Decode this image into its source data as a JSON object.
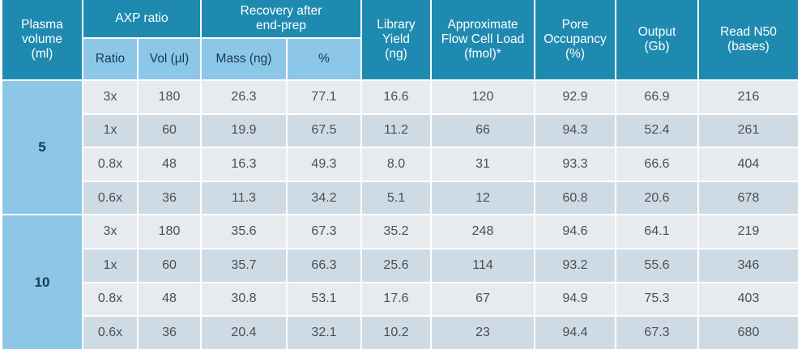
{
  "headers": {
    "plasma_volume": "Plasma\nvolume\n(ml)",
    "axp_ratio": "AXP ratio",
    "recovery": "Recovery after\nend-prep",
    "library_yield": "Library\nYield\n(ng)",
    "flow_cell_load": "Approximate\nFlow Cell Load\n(fmol)*",
    "pore_occupancy": "Pore\nOccupancy\n(%)",
    "output": "Output\n(Gb)",
    "read_n50": "Read N50\n(bases)",
    "ratio": "Ratio",
    "vol": "Vol (µl)",
    "mass": "Mass (ng)",
    "percent": "%"
  },
  "groups": [
    {
      "volume": "5",
      "rows": [
        [
          "3x",
          "180",
          "26.3",
          "77.1",
          "16.6",
          "120",
          "92.9",
          "66.9",
          "216"
        ],
        [
          "1x",
          "60",
          "19.9",
          "67.5",
          "11.2",
          "66",
          "94.3",
          "52.4",
          "261"
        ],
        [
          "0.8x",
          "48",
          "16.3",
          "49.3",
          "8.0",
          "31",
          "93.3",
          "66.6",
          "404"
        ],
        [
          "0.6x",
          "36",
          "11.3",
          "34.2",
          "5.1",
          "12",
          "60.8",
          "20.6",
          "678"
        ]
      ]
    },
    {
      "volume": "10",
      "rows": [
        [
          "3x",
          "180",
          "35.6",
          "67.3",
          "35.2",
          "248",
          "94.6",
          "64.1",
          "219"
        ],
        [
          "1x",
          "60",
          "35.7",
          "66.3",
          "25.6",
          "114",
          "93.2",
          "55.6",
          "346"
        ],
        [
          "0.8x",
          "48",
          "30.8",
          "53.1",
          "17.6",
          "67",
          "94.9",
          "75.3",
          "403"
        ],
        [
          "0.6x",
          "36",
          "20.4",
          "32.1",
          "10.2",
          "23",
          "94.4",
          "67.3",
          "680"
        ]
      ]
    }
  ]
}
